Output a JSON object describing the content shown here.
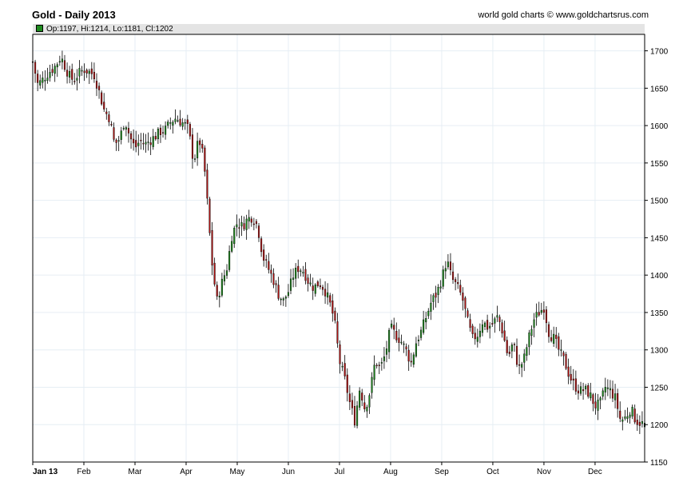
{
  "header": {
    "title": "Gold - Daily 2013",
    "credit": "world gold charts © www.goldchartsrus.com",
    "ohlc_label": "Op:1197, Hi:1214, Lo:1181, Cl:1202"
  },
  "colors": {
    "up": "#1e8a1e",
    "down": "#b01414",
    "wick": "#000000",
    "grid": "#e6eef4",
    "ohlc_box": "#1e8a1e"
  },
  "chart_data": {
    "type": "candlestick",
    "title": "Gold - Daily 2013",
    "xlabel": "",
    "ylabel": "",
    "x_tick_labels": [
      "Jan 13",
      "Feb",
      "Mar",
      "Apr",
      "May",
      "Jun",
      "Jul",
      "Aug",
      "Sep",
      "Oct",
      "Nov",
      "Dec"
    ],
    "x_ticks_month_index": [
      0,
      1,
      2,
      3,
      4,
      5,
      6,
      7,
      8,
      9,
      10,
      11
    ],
    "y_ticks": [
      1150,
      1200,
      1250,
      1300,
      1350,
      1400,
      1450,
      1500,
      1550,
      1600,
      1650,
      1700
    ],
    "ylim": [
      1150,
      1722
    ],
    "xlim_months": [
      0,
      11.97
    ],
    "y_axis_side": "right",
    "grid": true,
    "last_bar": {
      "open": 1197,
      "high": 1214,
      "low": 1181,
      "close": 1202
    },
    "close_path_month_index": [
      0,
      0.1,
      0.2,
      0.3,
      0.45,
      0.55,
      0.7,
      0.8,
      0.9,
      1.0,
      1.1,
      1.2,
      1.3,
      1.4,
      1.5,
      1.6,
      1.7,
      1.8,
      1.9,
      2.0,
      2.1,
      2.2,
      2.35,
      2.5,
      2.6,
      2.7,
      2.8,
      2.9,
      3.0,
      3.05,
      3.1,
      3.15,
      3.25,
      3.3,
      3.35,
      3.4,
      3.5,
      3.6,
      3.7,
      3.8,
      3.9,
      4.0,
      4.1,
      4.2,
      4.3,
      4.4,
      4.5,
      4.6,
      4.7,
      4.8,
      4.9,
      5.0,
      5.1,
      5.2,
      5.3,
      5.4,
      5.5,
      5.6,
      5.7,
      5.8,
      5.9,
      6.0,
      6.1,
      6.2,
      6.3,
      6.4,
      6.5,
      6.6,
      6.7,
      6.8,
      6.9,
      7.0,
      7.1,
      7.2,
      7.3,
      7.4,
      7.5,
      7.6,
      7.7,
      7.8,
      7.9,
      8.0,
      8.1,
      8.2,
      8.3,
      8.4,
      8.5,
      8.6,
      8.7,
      8.8,
      8.9,
      9.0,
      9.1,
      9.2,
      9.3,
      9.4,
      9.5,
      9.6,
      9.7,
      9.8,
      9.9,
      10.0,
      10.1,
      10.2,
      10.3,
      10.4,
      10.5,
      10.6,
      10.7,
      10.8,
      10.9,
      11.0,
      11.1,
      11.2,
      11.3,
      11.4,
      11.5,
      11.6,
      11.7,
      11.8,
      11.97
    ],
    "close_path_values": [
      1685,
      1655,
      1662,
      1670,
      1680,
      1692,
      1668,
      1660,
      1670,
      1675,
      1672,
      1668,
      1645,
      1620,
      1610,
      1575,
      1582,
      1608,
      1585,
      1570,
      1580,
      1575,
      1583,
      1592,
      1595,
      1605,
      1610,
      1605,
      1600,
      1595,
      1570,
      1552,
      1582,
      1570,
      1550,
      1510,
      1420,
      1365,
      1390,
      1410,
      1455,
      1470,
      1465,
      1475,
      1478,
      1465,
      1425,
      1410,
      1395,
      1375,
      1365,
      1378,
      1400,
      1410,
      1405,
      1390,
      1383,
      1390,
      1382,
      1365,
      1340,
      1285,
      1262,
      1230,
      1205,
      1250,
      1220,
      1245,
      1285,
      1275,
      1295,
      1330,
      1320,
      1312,
      1300,
      1282,
      1310,
      1325,
      1345,
      1365,
      1375,
      1395,
      1420,
      1395,
      1385,
      1370,
      1340,
      1315,
      1320,
      1338,
      1330,
      1335,
      1345,
      1322,
      1290,
      1310,
      1275,
      1285,
      1315,
      1340,
      1350,
      1357,
      1322,
      1315,
      1298,
      1285,
      1265,
      1252,
      1245,
      1247,
      1240,
      1225,
      1228,
      1250,
      1245,
      1235,
      1205,
      1210,
      1222,
      1205,
      1200
    ]
  }
}
